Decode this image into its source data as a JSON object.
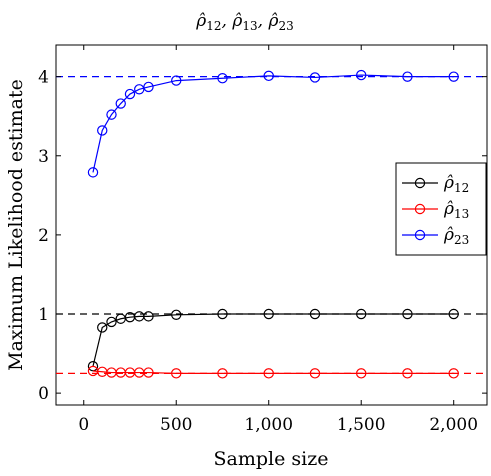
{
  "chart_data": {
    "type": "line",
    "title": "ρ̂12, ρ̂13, ρ̂23",
    "title_parts": [
      {
        "base": "ρ̂",
        "sub": "12"
      },
      {
        "base": "ρ̂",
        "sub": "13"
      },
      {
        "base": "ρ̂",
        "sub": "23"
      }
    ],
    "xlabel": "Sample size",
    "ylabel": "Maximum Likelihood estimate",
    "xlim": [
      -150,
      2180
    ],
    "ylim": [
      -0.15,
      4.4
    ],
    "xticks": [
      0,
      500,
      1000,
      1500,
      2000
    ],
    "xtick_labels": [
      "0",
      "500",
      "1,000",
      "1,500",
      "2,000"
    ],
    "yticks": [
      0,
      1,
      2,
      3,
      4
    ],
    "ytick_labels": [
      "0",
      "1",
      "2",
      "3",
      "4"
    ],
    "grid": false,
    "legend_position": "right",
    "reference_lines": [
      {
        "y": 4,
        "color": "#0000ff",
        "style": "dashed"
      },
      {
        "y": 1,
        "color": "#000000",
        "style": "dashed"
      },
      {
        "y": 0.25,
        "color": "#ff0000",
        "style": "dashed"
      }
    ],
    "x": [
      50,
      100,
      150,
      200,
      250,
      300,
      350,
      500,
      750,
      1000,
      1250,
      1500,
      1750,
      2000
    ],
    "series": [
      {
        "name": "ρ̂12",
        "base": "ρ̂",
        "sub": "12",
        "color": "#000000",
        "values": [
          0.34,
          0.83,
          0.9,
          0.94,
          0.96,
          0.97,
          0.97,
          0.99,
          1.0,
          1.0,
          1.0,
          1.0,
          1.0,
          1.0
        ]
      },
      {
        "name": "ρ̂13",
        "base": "ρ̂",
        "sub": "13",
        "color": "#ff0000",
        "values": [
          0.28,
          0.27,
          0.26,
          0.26,
          0.26,
          0.26,
          0.26,
          0.25,
          0.25,
          0.25,
          0.25,
          0.25,
          0.25,
          0.25
        ]
      },
      {
        "name": "ρ̂23",
        "base": "ρ̂",
        "sub": "23",
        "color": "#0000ff",
        "values": [
          2.79,
          3.32,
          3.52,
          3.66,
          3.78,
          3.84,
          3.87,
          3.95,
          3.98,
          4.01,
          3.99,
          4.02,
          4.0,
          4.0
        ]
      }
    ]
  }
}
